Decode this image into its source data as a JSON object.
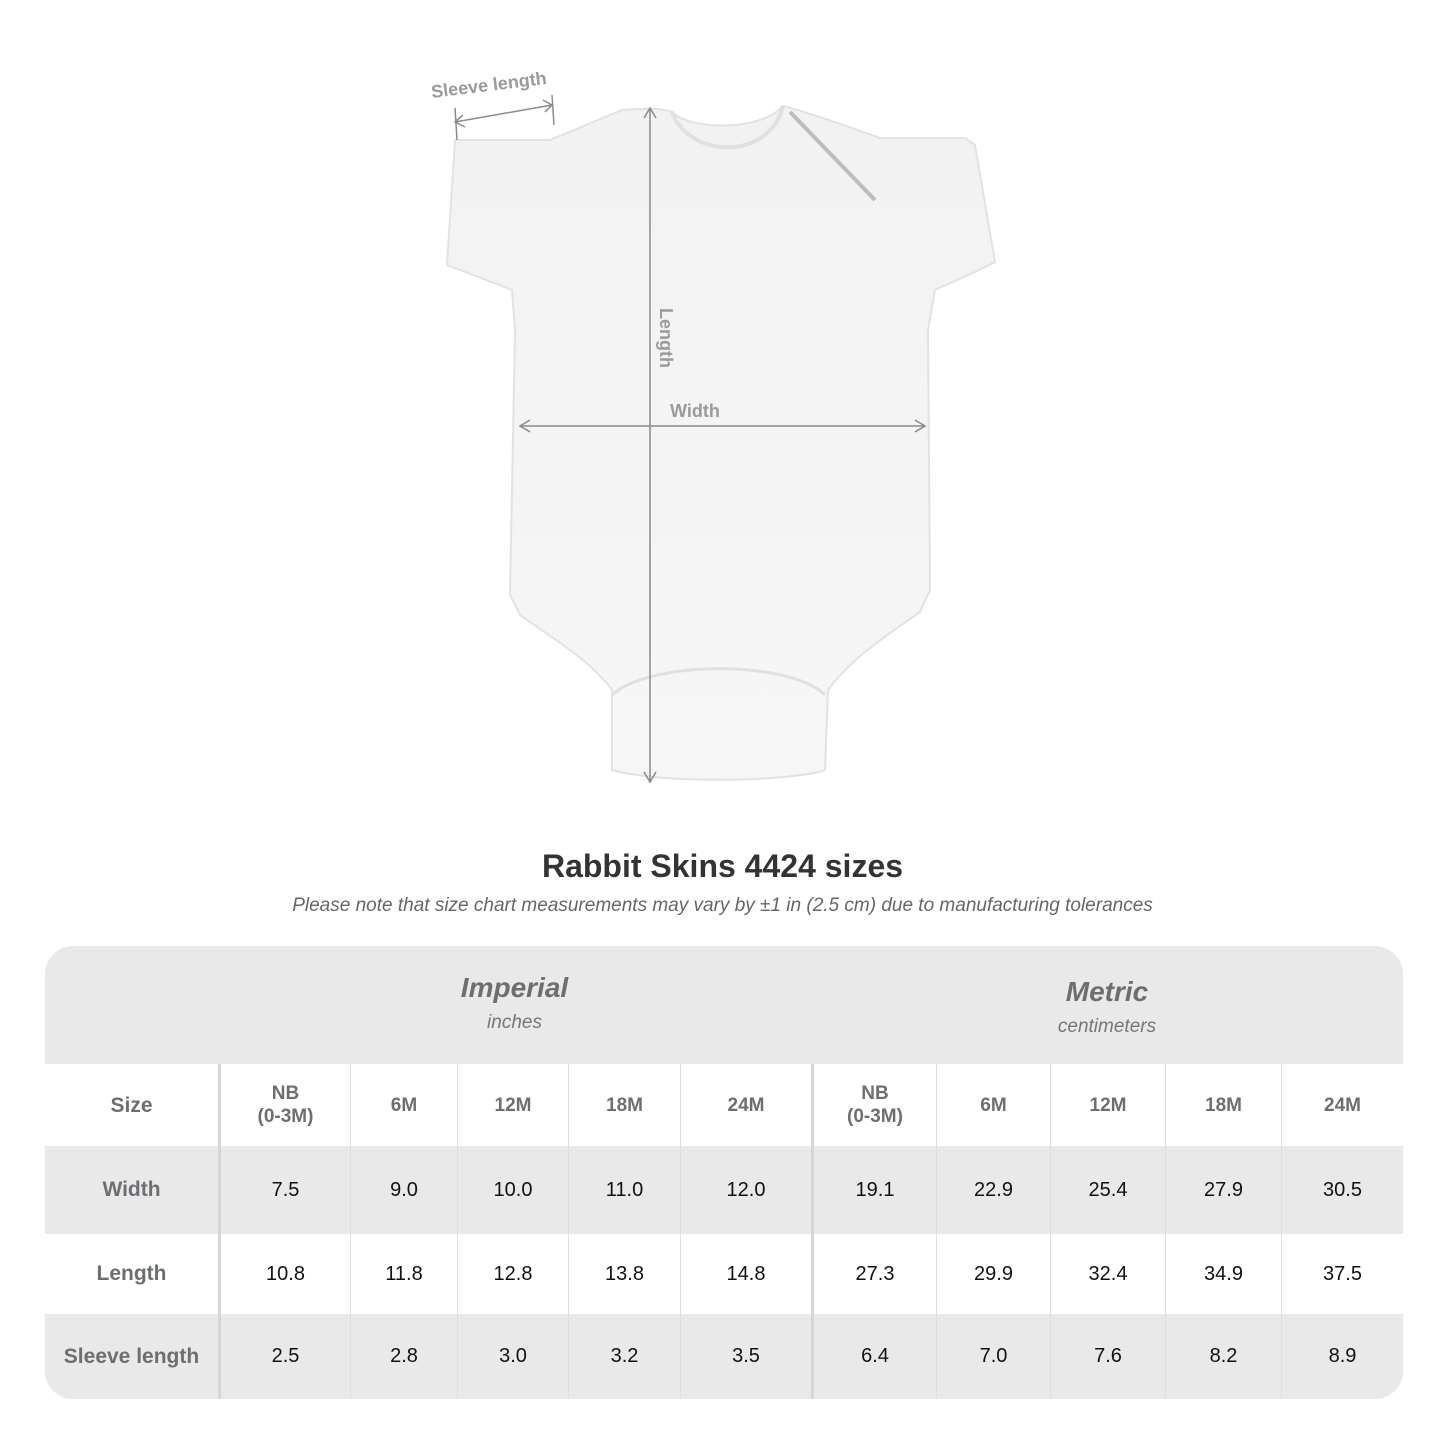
{
  "illustration": {
    "labels": {
      "sleeve": "Sleeve length",
      "length": "Length",
      "width": "Width"
    }
  },
  "title": "Rabbit Skins 4424 sizes",
  "subtitle": "Please note that size chart measurements may vary by ±1 in (2.5 cm) due to manufacturing tolerances",
  "table": {
    "imperial": {
      "name": "Imperial",
      "unit": "inches"
    },
    "metric": {
      "name": "Metric",
      "unit": "centimeters"
    },
    "size_label": "Size",
    "sizes": [
      "NB\n(0-3M)",
      "6M",
      "12M",
      "18M",
      "24M"
    ],
    "rows": [
      {
        "label": "Width",
        "imperial": [
          "7.5",
          "9.0",
          "10.0",
          "11.0",
          "12.0"
        ],
        "metric": [
          "19.1",
          "22.9",
          "25.4",
          "27.9",
          "30.5"
        ]
      },
      {
        "label": "Length",
        "imperial": [
          "10.8",
          "11.8",
          "12.8",
          "13.8",
          "14.8"
        ],
        "metric": [
          "27.3",
          "29.9",
          "32.4",
          "34.9",
          "37.5"
        ]
      },
      {
        "label": "Sleeve length",
        "imperial": [
          "2.5",
          "2.8",
          "3.0",
          "3.2",
          "3.5"
        ],
        "metric": [
          "6.4",
          "7.0",
          "7.6",
          "8.2",
          "8.9"
        ]
      }
    ]
  }
}
